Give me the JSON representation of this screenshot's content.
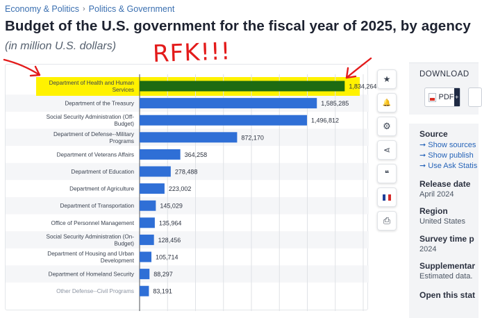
{
  "breadcrumb": {
    "items": [
      "Economy & Politics",
      "Politics & Government"
    ],
    "separator": "›"
  },
  "title": "Budget of the U.S. government for the fiscal year of 2025, by agency",
  "subtitle": "(in million U.S. dollars)",
  "annotation": {
    "text": "RFK!!!",
    "color": "#e31b1b"
  },
  "toolbar": {
    "icons": [
      "star-icon",
      "bell-icon",
      "gear-icon",
      "share-icon",
      "quote-icon",
      "flag-icon",
      "print-icon"
    ],
    "star": "★",
    "bell": "🔔",
    "gear": "⚙",
    "share": "⋖",
    "quote": "❝",
    "print": "⎙"
  },
  "download": {
    "title": "DOWNLOAD",
    "pdf_label": "PDF",
    "plus": "+"
  },
  "info": {
    "source_label": "Source",
    "source_links": [
      "➞ Show sources",
      "➞ Show publish",
      "➞ Use Ask Statis"
    ],
    "release_date_label": "Release date",
    "release_date_value": "April 2024",
    "region_label": "Region",
    "region_value": "United States",
    "survey_label": "Survey time p",
    "survey_value": "2024",
    "supplementary_label": "Supplementar",
    "supplementary_value": "Estimated data.",
    "open_label": "Open this stat"
  },
  "colors": {
    "bar": "#2f6fd6",
    "highlight_bar": "#1d6b12",
    "highlight_background": "#fff200",
    "annotation": "#e31b1b"
  },
  "chart_data": {
    "type": "bar",
    "orientation": "horizontal",
    "title": "",
    "xlabel": "",
    "ylabel": "",
    "grid": true,
    "xlim": [
      0,
      2000000
    ],
    "categories": [
      [
        "Department of Health and Human",
        "Services"
      ],
      [
        "Department of the Treasury"
      ],
      [
        "Social Security Administration (Off-",
        "Budget)"
      ],
      [
        "Department of Defense--Military",
        "Programs"
      ],
      [
        "Department of Veterans Affairs"
      ],
      [
        "Department of Education"
      ],
      [
        "Department of Agriculture"
      ],
      [
        "Department of Transportation"
      ],
      [
        "Office of Personnel Management"
      ],
      [
        "Social Security Administration (On-",
        "Budget)"
      ],
      [
        "Department of Housing and Urban",
        "Development"
      ],
      [
        "Department of Homeland Security"
      ],
      [
        "Other Defense--Civil Programs"
      ]
    ],
    "values": [
      1834264,
      1585285,
      1496812,
      872170,
      364258,
      278488,
      223002,
      145029,
      135964,
      128456,
      105714,
      88297,
      83191
    ],
    "value_labels": [
      "1,834,264",
      "1,585,285",
      "1,496,812",
      "872,170",
      "364,258",
      "278,488",
      "223,002",
      "145,029",
      "135,964",
      "128,456",
      "105,714",
      "88,297",
      "83,191"
    ],
    "highlight_index": 0
  }
}
